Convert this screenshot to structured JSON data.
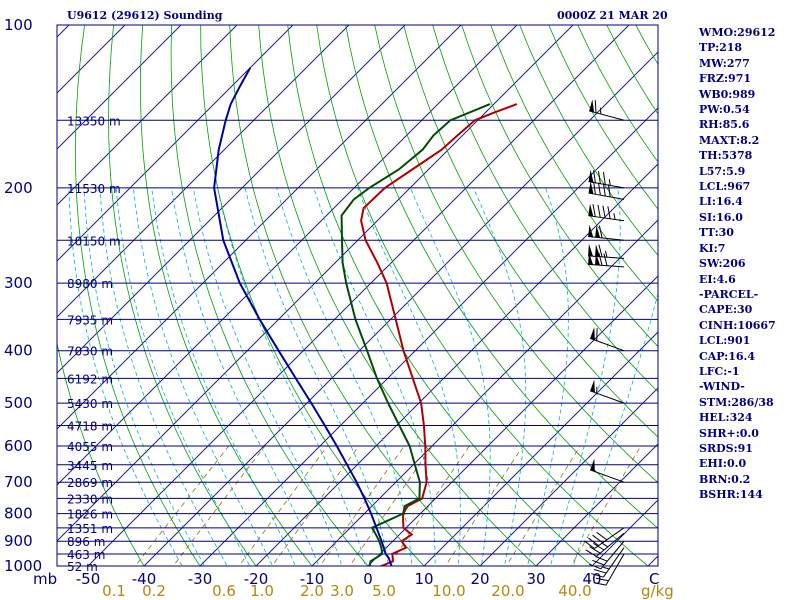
{
  "header": {
    "station": "U9612 (29612) Sounding",
    "time": "0000Z 21 MAR 20"
  },
  "sidebar": {
    "items": [
      "WMO:29612",
      "TP:218",
      "MW:277",
      "FRZ:971",
      "WB0:989",
      "PW:0.54",
      "RH:85.6",
      "MAXT:8.2",
      "TH:5378",
      "L57:5.9",
      "LCL:967",
      "LI:16.4",
      "SI:16.0",
      "TT:30",
      "KI:7",
      "SW:206",
      "EI:4.6",
      "-PARCEL-",
      "CAPE:30",
      "CINH:10667",
      "LCL:901",
      "CAP:16.4",
      "LFC:-1",
      "-WIND-",
      "STM:286/38",
      "HEL:324",
      "SHR+:0.0",
      "SRDS:91",
      "EHI:0.0",
      "BRN:0.2",
      "BSHR:144"
    ]
  },
  "colors": {
    "frame": "#000080",
    "isobar": "#000080",
    "isotherm": "#000080",
    "dry_adiabat": "#00A000",
    "moist_adiabat": "#00B0D0",
    "mixing_ratio": "#8B7500",
    "temperature": "#B00000",
    "dewpoint": "#004D00",
    "parcel": "#0000A0"
  },
  "chart_data": {
    "type": "skew-t log-p",
    "xlabel": "mb",
    "temperature_ticks": [
      -50,
      -40,
      -30,
      -20,
      -10,
      0,
      10,
      20,
      30,
      40
    ],
    "temperature_unit": "C",
    "pressure_labels": [
      100,
      200,
      300,
      400,
      500,
      600,
      700,
      800,
      900,
      1000
    ],
    "mixing_ratio_labels": [
      "0.1",
      "0.2",
      "0.6",
      "1.0",
      "2.0",
      "3.0",
      "5.0",
      "10.0",
      "20.0",
      "40.0"
    ],
    "mixing_ratio_unit": "g/kg",
    "height_levels": [
      {
        "p": 150,
        "label": "13350 m"
      },
      {
        "p": 200,
        "label": "11530 m"
      },
      {
        "p": 250,
        "label": "10150 m"
      },
      {
        "p": 300,
        "label": "8980 m"
      },
      {
        "p": 350,
        "label": "7935 m"
      },
      {
        "p": 400,
        "label": "7030 m"
      },
      {
        "p": 450,
        "label": "6192 m"
      },
      {
        "p": 500,
        "label": "5430 m"
      },
      {
        "p": 550,
        "label": "4718 m"
      },
      {
        "p": 600,
        "label": "4055 m"
      },
      {
        "p": 650,
        "label": "3445 m"
      },
      {
        "p": 700,
        "label": "2869 m"
      },
      {
        "p": 750,
        "label": "2330 m"
      },
      {
        "p": 800,
        "label": "1826 m"
      },
      {
        "p": 850,
        "label": "1351 m"
      },
      {
        "p": 900,
        "label": "896 m"
      },
      {
        "p": 950,
        "label": "463 m"
      },
      {
        "p": 1000,
        "label": "52 m"
      }
    ],
    "series": [
      {
        "key": "temperature",
        "points": [
          [
            1000,
            2.4
          ],
          [
            980,
            3.6
          ],
          [
            950,
            2.2
          ],
          [
            925,
            3.5
          ],
          [
            900,
            1.6
          ],
          [
            875,
            2.2
          ],
          [
            850,
            -0.5
          ],
          [
            825,
            -1.8
          ],
          [
            800,
            -3.1
          ],
          [
            775,
            -3.6
          ],
          [
            750,
            -2.4
          ],
          [
            700,
            -4.5
          ],
          [
            650,
            -7.8
          ],
          [
            600,
            -11.2
          ],
          [
            550,
            -15.1
          ],
          [
            500,
            -19.6
          ],
          [
            450,
            -25.5
          ],
          [
            400,
            -32.1
          ],
          [
            350,
            -39.1
          ],
          [
            300,
            -47.2
          ],
          [
            275,
            -52.5
          ],
          [
            250,
            -58.6
          ],
          [
            230,
            -62.9
          ],
          [
            218,
            -64.7
          ],
          [
            200,
            -64.5
          ],
          [
            185,
            -62.9
          ],
          [
            170,
            -61.2
          ],
          [
            160,
            -60.9
          ],
          [
            150,
            -60.5
          ],
          [
            145,
            -58.4
          ],
          [
            140,
            -55.9
          ]
        ]
      },
      {
        "key": "dewpoint",
        "points": [
          [
            1000,
            0.3
          ],
          [
            980,
            -0.4
          ],
          [
            950,
            0.4
          ],
          [
            925,
            -0.9
          ],
          [
            900,
            -2.4
          ],
          [
            875,
            -4.2
          ],
          [
            850,
            -6.1
          ],
          [
            825,
            -4.6
          ],
          [
            800,
            -3.1
          ],
          [
            775,
            -4.1
          ],
          [
            750,
            -2.9
          ],
          [
            700,
            -5.7
          ],
          [
            650,
            -9.7
          ],
          [
            600,
            -14.0
          ],
          [
            550,
            -19.5
          ],
          [
            500,
            -25.5
          ],
          [
            450,
            -31.9
          ],
          [
            400,
            -38.6
          ],
          [
            350,
            -46.3
          ],
          [
            300,
            -54.4
          ],
          [
            275,
            -58.7
          ],
          [
            250,
            -62.8
          ],
          [
            225,
            -67.3
          ],
          [
            210,
            -68.0
          ],
          [
            200,
            -67.3
          ],
          [
            185,
            -65.3
          ],
          [
            170,
            -64.6
          ],
          [
            160,
            -65.2
          ],
          [
            150,
            -64.9
          ],
          [
            140,
            -60.7
          ]
        ]
      },
      {
        "key": "parcel",
        "points": [
          [
            1000,
            4.2
          ],
          [
            967,
            2.3
          ],
          [
            950,
            1.0
          ],
          [
            900,
            -2.0
          ],
          [
            850,
            -5.3
          ],
          [
            800,
            -8.8
          ],
          [
            750,
            -12.7
          ],
          [
            700,
            -17.0
          ],
          [
            650,
            -21.8
          ],
          [
            600,
            -27.0
          ],
          [
            550,
            -32.8
          ],
          [
            500,
            -39.2
          ],
          [
            450,
            -46.4
          ],
          [
            400,
            -54.4
          ],
          [
            350,
            -63.4
          ],
          [
            300,
            -73.4
          ],
          [
            250,
            -84.0
          ],
          [
            200,
            -95.0
          ],
          [
            170,
            -101.0
          ],
          [
            150,
            -105.0
          ],
          [
            140,
            -107.0
          ],
          [
            130,
            -108.5
          ],
          [
            120,
            -110.0
          ]
        ]
      }
    ],
    "wind_barbs": [
      {
        "p": 150,
        "dir": 285,
        "kt": 65
      },
      {
        "p": 200,
        "dir": 280,
        "kt": 85
      },
      {
        "p": 210,
        "dir": 280,
        "kt": 90
      },
      {
        "p": 230,
        "dir": 278,
        "kt": 95
      },
      {
        "p": 250,
        "dir": 276,
        "kt": 110
      },
      {
        "p": 270,
        "dir": 274,
        "kt": 115
      },
      {
        "p": 280,
        "dir": 274,
        "kt": 120
      },
      {
        "p": 400,
        "dir": 290,
        "kt": 60
      },
      {
        "p": 500,
        "dir": 290,
        "kt": 55
      },
      {
        "p": 700,
        "dir": 290,
        "kt": 50
      },
      {
        "p": 850,
        "dir": 235,
        "kt": 40
      },
      {
        "p": 870,
        "dir": 230,
        "kt": 35
      },
      {
        "p": 900,
        "dir": 220,
        "kt": 30
      },
      {
        "p": 925,
        "dir": 215,
        "kt": 25
      },
      {
        "p": 950,
        "dir": 210,
        "kt": 20
      }
    ]
  }
}
